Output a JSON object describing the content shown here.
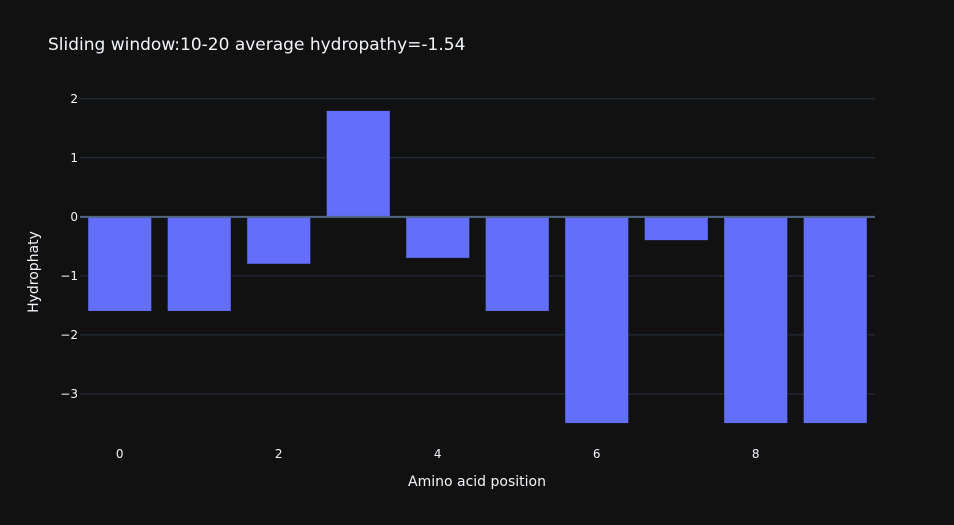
{
  "chart_data": {
    "type": "bar",
    "title": "Sliding window:10-20 average hydropathy=-1.54",
    "xlabel": "Amino acid position",
    "ylabel": "Hydrophaty",
    "x": [
      0,
      1,
      2,
      3,
      4,
      5,
      6,
      7,
      8,
      9
    ],
    "values": [
      -1.6,
      -1.6,
      -0.8,
      1.8,
      -0.7,
      -1.6,
      -3.5,
      -0.4,
      -3.5,
      -3.5
    ],
    "xlim": [
      -0.5,
      9.5
    ],
    "ylim": [
      -3.85,
      2.2
    ],
    "x_ticks": [
      0,
      2,
      4,
      6,
      8
    ],
    "x_tick_labels": [
      "0",
      "2",
      "4",
      "6",
      "8"
    ],
    "y_ticks": [
      -3,
      -2,
      -1,
      0,
      1,
      2
    ],
    "y_tick_labels": [
      "−3",
      "−2",
      "−1",
      "0",
      "1",
      "2"
    ],
    "grid": true,
    "legend": "none",
    "colors": {
      "background": "#111111",
      "bar": "#636efa",
      "grid": "#283442",
      "zeroline": "#506784",
      "text": "#f2f5fa"
    }
  }
}
